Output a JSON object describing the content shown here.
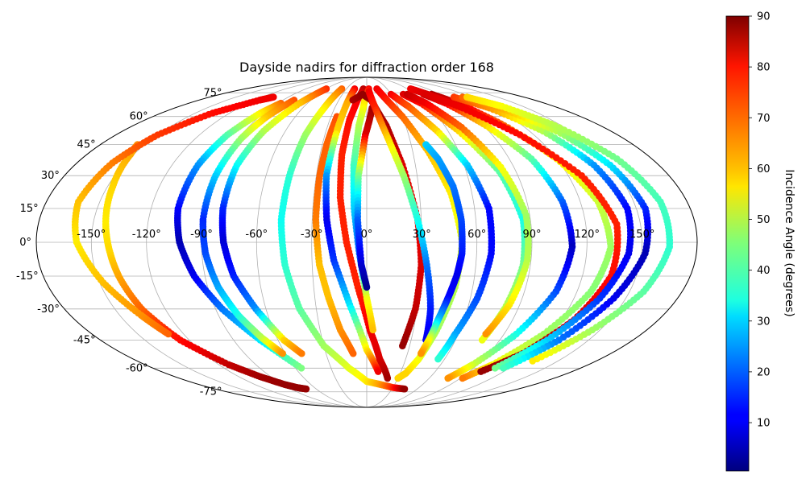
{
  "chart_data": {
    "type": "scatter",
    "projection": "mollweide",
    "title": "Dayside nadirs for diffraction order 168",
    "xlabel": "",
    "ylabel": "",
    "x_tick_labels": [
      "-150°",
      "-120°",
      "-90°",
      "-60°",
      "-30°",
      "0°",
      "30°",
      "60°",
      "90°",
      "120°",
      "150°"
    ],
    "y_tick_labels": [
      "-75°",
      "-60°",
      "-45°",
      "-30°",
      "-15°",
      "0°",
      "15°",
      "30°",
      "45°",
      "60°",
      "75°"
    ],
    "xlim": [
      -180,
      180
    ],
    "ylim": [
      -90,
      90
    ],
    "grid": true,
    "colormap": "jet",
    "colorbar": {
      "label": "Incidence Angle (degrees)",
      "range": [
        0.5,
        90
      ],
      "ticks": [
        "10",
        "20",
        "30",
        "40",
        "50",
        "60",
        "70",
        "80",
        "90"
      ]
    },
    "tracks": [
      {
        "lon": [
          -155,
          -152,
          -147,
          -143,
          -140,
          -138,
          -134,
          -126,
          -112,
          -100,
          -88,
          -80,
          -72
        ],
        "lat": [
          45,
          40,
          25,
          8,
          -5,
          -15,
          -30,
          -45,
          -58,
          -65,
          -70,
          -72,
          -73
        ],
        "incidence": [
          67,
          64,
          60,
          58,
          60,
          64,
          70,
          78,
          84,
          87,
          88,
          88,
          88
        ]
      },
      {
        "lon": [
          -107,
          -115,
          -135,
          -150,
          -158,
          -162,
          -158,
          -148,
          -137,
          -130
        ],
        "lat": [
          72,
          70,
          62,
          50,
          36,
          18,
          0,
          -18,
          -33,
          -42
        ],
        "incidence": [
          80,
          80,
          78,
          74,
          68,
          62,
          58,
          62,
          66,
          70
        ]
      },
      {
        "lon": [
          -87,
          -93,
          -100,
          -104,
          -105,
          -102,
          -96,
          -86,
          -72,
          -55
        ],
        "lat": [
          68,
          62,
          50,
          35,
          15,
          0,
          -15,
          -30,
          -45,
          -60
        ],
        "incidence": [
          70,
          58,
          42,
          25,
          12,
          5,
          10,
          22,
          32,
          45
        ]
      },
      {
        "lon": [
          -78,
          -84,
          -88,
          -90,
          -90,
          -88,
          -84,
          -78,
          -70,
          -62
        ],
        "lat": [
          70,
          60,
          48,
          30,
          10,
          -5,
          -20,
          -33,
          -44,
          -52
        ],
        "incidence": [
          72,
          62,
          48,
          30,
          15,
          18,
          26,
          36,
          50,
          66
        ]
      },
      {
        "lon": [
          -60,
          -68,
          -76,
          -80,
          -80,
          -78,
          -74,
          -66,
          -56,
          -48
        ],
        "lat": [
          78,
          68,
          52,
          35,
          15,
          0,
          -15,
          -30,
          -45,
          -52
        ],
        "incidence": [
          75,
          62,
          50,
          35,
          15,
          8,
          14,
          24,
          60,
          68
        ]
      },
      {
        "lon": [
          -37,
          -40,
          -44,
          -46,
          -47,
          -45,
          -40,
          -30,
          -15,
          0,
          15,
          30,
          45
        ],
        "lat": [
          78,
          65,
          50,
          30,
          10,
          -10,
          -30,
          -48,
          -60,
          -68,
          -70,
          -72,
          -73
        ],
        "incidence": [
          70,
          58,
          48,
          38,
          35,
          38,
          42,
          48,
          54,
          58,
          65,
          75,
          88
        ]
      },
      {
        "lon": [
          -25,
          -27,
          -28,
          -28,
          -26,
          -22,
          -17,
          -10
        ],
        "lat": [
          60,
          45,
          30,
          10,
          -10,
          -25,
          -40,
          -52
        ],
        "incidence": [
          72,
          70,
          70,
          68,
          62,
          62,
          66,
          70
        ]
      },
      {
        "lon": [
          -18,
          -20,
          -22,
          -24,
          -22,
          -18,
          -10,
          0,
          10
        ],
        "lat": [
          78,
          68,
          52,
          30,
          10,
          -8,
          -28,
          -50,
          -62
        ],
        "incidence": [
          80,
          64,
          60,
          25,
          10,
          16,
          32,
          58,
          80
        ]
      },
      {
        "lon": [
          -5,
          -10,
          -14,
          -16,
          -15,
          -11,
          -5,
          2,
          10,
          20
        ],
        "lat": [
          78,
          70,
          58,
          40,
          20,
          0,
          -20,
          -40,
          -55,
          -66
        ],
        "incidence": [
          85,
          80,
          78,
          76,
          76,
          76,
          76,
          80,
          82,
          87
        ]
      },
      {
        "lon": [
          3,
          -2,
          -6,
          -8,
          -7,
          -4,
          0,
          4
        ],
        "lat": [
          78,
          70,
          55,
          35,
          15,
          -5,
          -25,
          -40
        ],
        "incidence": [
          80,
          60,
          50,
          40,
          30,
          20,
          55,
          62
        ]
      },
      {
        "lon": [
          5,
          -1,
          -5,
          -5,
          -3,
          0
        ],
        "lat": [
          65,
          50,
          30,
          10,
          -10,
          -20
        ],
        "incidence": [
          88,
          82,
          45,
          20,
          8,
          2
        ]
      },
      {
        "lon": [
          -15,
          -5,
          5,
          15,
          22,
          28,
          30,
          29,
          25
        ],
        "lat": [
          70,
          74,
          70,
          55,
          35,
          10,
          -10,
          -30,
          -48
        ],
        "incidence": [
          86,
          88,
          88,
          86,
          82,
          80,
          82,
          84,
          88
        ]
      },
      {
        "lon": [
          3,
          8,
          15,
          22,
          28,
          33,
          38,
          40
        ],
        "lat": [
          76,
          65,
          48,
          30,
          10,
          -10,
          -30,
          -45
        ],
        "incidence": [
          80,
          76,
          60,
          48,
          36,
          22,
          14,
          10
        ]
      },
      {
        "lon": [
          15,
          20,
          30,
          40,
          48,
          52,
          50,
          45,
          40,
          35,
          30
        ],
        "lat": [
          78,
          72,
          60,
          42,
          22,
          0,
          -20,
          -40,
          -55,
          -63,
          -66
        ],
        "incidence": [
          80,
          78,
          70,
          62,
          58,
          54,
          50,
          48,
          55,
          60,
          60
        ]
      },
      {
        "lon": [
          30,
          40,
          52,
          62,
          68,
          68,
          64,
          58,
          55
        ],
        "lat": [
          74,
          66,
          52,
          35,
          15,
          -5,
          -25,
          -42,
          -55
        ],
        "incidence": [
          80,
          72,
          60,
          30,
          12,
          12,
          18,
          26,
          38
        ]
      },
      {
        "lon": [
          45,
          55,
          68,
          80,
          86,
          86,
          82,
          78
        ],
        "lat": [
          74,
          68,
          52,
          32,
          10,
          -10,
          -30,
          -45
        ],
        "incidence": [
          82,
          78,
          60,
          42,
          36,
          44,
          50,
          55
        ]
      },
      {
        "lon": [
          50,
          60,
          72,
          82,
          88,
          88,
          84,
          78
        ],
        "lat": [
          74,
          68,
          54,
          34,
          12,
          -8,
          -28,
          -42
        ],
        "incidence": [
          84,
          80,
          70,
          56,
          48,
          50,
          58,
          66
        ]
      },
      {
        "lon": [
          40,
          45,
          50,
          52,
          52,
          50,
          47,
          44,
          42,
          40
        ],
        "lat": [
          45,
          38,
          25,
          10,
          -5,
          -15,
          -25,
          -35,
          -45,
          -52
        ],
        "incidence": [
          30,
          26,
          22,
          18,
          14,
          10,
          12,
          28,
          55,
          66
        ]
      },
      {
        "lon": [
          70,
          80,
          92,
          104,
          110,
          112,
          108,
          98,
          86,
          78
        ],
        "lat": [
          74,
          68,
          55,
          38,
          18,
          -2,
          -22,
          -42,
          -58,
          -66
        ],
        "incidence": [
          84,
          80,
          60,
          42,
          20,
          6,
          18,
          36,
          52,
          66
        ]
      },
      {
        "lon": [
          80,
          92,
          106,
          120,
          130,
          133,
          128,
          116,
          102,
          92
        ],
        "lat": [
          74,
          68,
          55,
          38,
          18,
          -2,
          -22,
          -42,
          -58,
          -66
        ],
        "incidence": [
          86,
          82,
          70,
          58,
          52,
          48,
          46,
          48,
          56,
          68
        ]
      },
      {
        "lon": [
          65,
          75,
          90,
          110,
          128,
          137,
          136,
          128,
          115,
          100
        ],
        "lat": [
          78,
          74,
          65,
          50,
          30,
          8,
          -15,
          -35,
          -52,
          -62
        ],
        "incidence": [
          80,
          82,
          80,
          78,
          76,
          76,
          78,
          82,
          86,
          88
        ]
      },
      {
        "lon": [
          100,
          115,
          130,
          140,
          145,
          143,
          135,
          122,
          108
        ],
        "lat": [
          72,
          65,
          52,
          35,
          15,
          -5,
          -25,
          -45,
          -60
        ],
        "incidence": [
          74,
          66,
          50,
          25,
          12,
          10,
          16,
          30,
          44
        ]
      },
      {
        "lon": [
          110,
          125,
          140,
          150,
          155,
          152,
          143,
          130,
          115
        ],
        "lat": [
          72,
          65,
          52,
          35,
          15,
          -5,
          -25,
          -45,
          -60
        ],
        "incidence": [
          70,
          64,
          50,
          32,
          15,
          5,
          10,
          22,
          40
        ]
      },
      {
        "lon": [
          115,
          130,
          145,
          158,
          165,
          165,
          158,
          145,
          130
        ],
        "lat": [
          72,
          66,
          55,
          38,
          18,
          -2,
          -22,
          -40,
          -56
        ],
        "incidence": [
          60,
          56,
          50,
          44,
          40,
          38,
          42,
          48,
          58
        ]
      }
    ]
  }
}
